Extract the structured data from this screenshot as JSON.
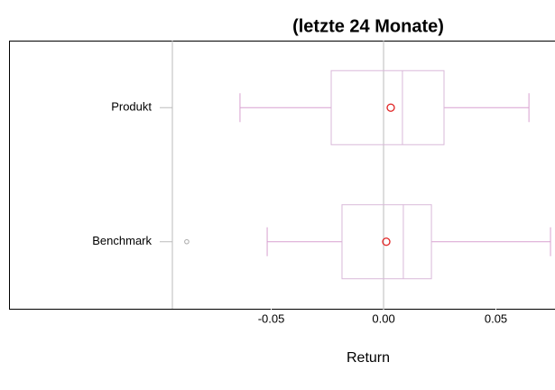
{
  "chart_data": {
    "type": "boxplot",
    "title": "(letzte 24 Monate)",
    "xlabel": "Return",
    "categories": [
      "Produkt",
      "Benchmark"
    ],
    "whisker_low": [
      -0.0639,
      -0.0518
    ],
    "q1": [
      -0.0233,
      -0.0185
    ],
    "median": [
      0.0084,
      0.0088
    ],
    "q3": [
      0.0269,
      0.0213
    ],
    "whisker_high": [
      0.0647,
      0.0743
    ],
    "mean": [
      0.0032,
      0.0012
    ],
    "outliers": [
      [],
      [
        -0.0876
      ]
    ],
    "xlim": [
      -0.1667,
      0.0763
    ],
    "xticks": [
      -0.05,
      {
        "value": 0,
        "label": "0.00"
      },
      0.05
    ],
    "vlines": [
      -0.094,
      0
    ],
    "box_color": "#d9b8d9",
    "whisker_color": "#d8a0d0",
    "mean_color": "#e02020",
    "outlier_color": "#aaaaaa",
    "vline_color": "#bbbbbb"
  }
}
